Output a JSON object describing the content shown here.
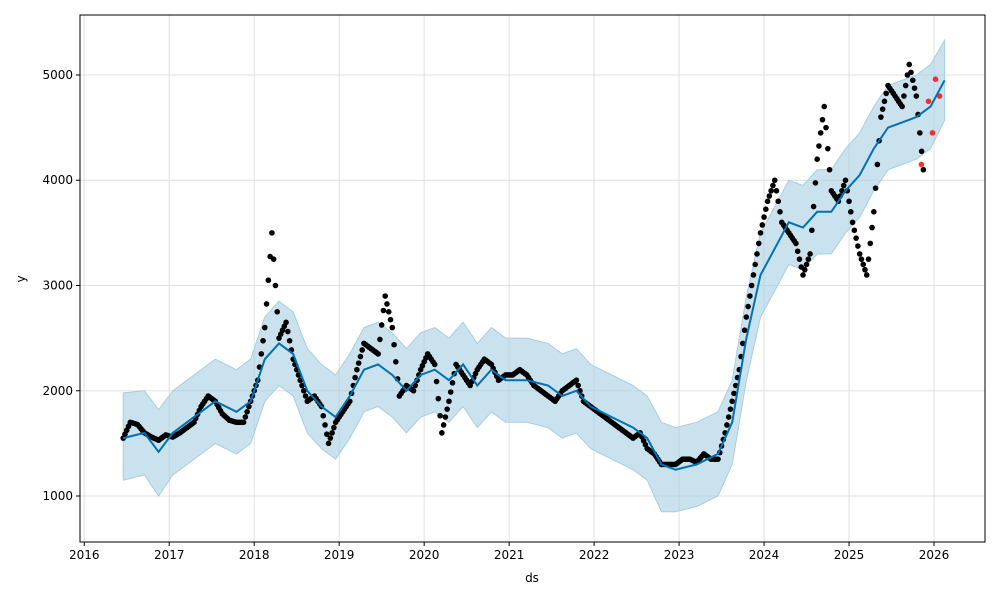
{
  "chart_data": {
    "type": "scatter",
    "title": "",
    "xlabel": "ds",
    "ylabel": "y",
    "xlim": [
      2015.95,
      2026.6
    ],
    "ylim": [
      563,
      5570
    ],
    "grid": true,
    "x_ticks": [
      "2016",
      "2017",
      "2018",
      "2019",
      "2020",
      "2021",
      "2022",
      "2023",
      "2024",
      "2025",
      "2026"
    ],
    "y_ticks": [
      1000,
      2000,
      3000,
      4000,
      5000
    ],
    "colors": {
      "observed": "#000000",
      "recent": "#ff0000",
      "forecast": "#0072b2",
      "interval": "#a6cee3"
    },
    "observed": {
      "dates": [
        "2016-06",
        "2016-07",
        "2016-08",
        "2016-09",
        "2016-10",
        "2016-11",
        "2016-12",
        "2017-01",
        "2017-02",
        "2017-03",
        "2017-04",
        "2017-05",
        "2017-06",
        "2017-07",
        "2017-08",
        "2017-09",
        "2017-10",
        "2017-11",
        "2017-12",
        "2018-01",
        "2018-02",
        "2018-03",
        "2018-04",
        "2018-05",
        "2018-06",
        "2018-07",
        "2018-08",
        "2018-09",
        "2018-10",
        "2018-11",
        "2018-12",
        "2019-01",
        "2019-02",
        "2019-03",
        "2019-04",
        "2019-05",
        "2019-06",
        "2019-07",
        "2019-08",
        "2019-09",
        "2019-10",
        "2019-11",
        "2019-12",
        "2020-01",
        "2020-02",
        "2020-03",
        "2020-04",
        "2020-05",
        "2020-06",
        "2020-07",
        "2020-08",
        "2020-09",
        "2020-10",
        "2020-11",
        "2020-12",
        "2021-01",
        "2021-02",
        "2021-03",
        "2021-04",
        "2021-05",
        "2021-06",
        "2021-07",
        "2021-08",
        "2021-09",
        "2021-10",
        "2021-11",
        "2021-12",
        "2022-01",
        "2022-02",
        "2022-03",
        "2022-04",
        "2022-05",
        "2022-06",
        "2022-07",
        "2022-08",
        "2022-09",
        "2022-10",
        "2022-11",
        "2022-12",
        "2023-01",
        "2023-02",
        "2023-03",
        "2023-04",
        "2023-05",
        "2023-06",
        "2023-07",
        "2023-08",
        "2023-09",
        "2023-10",
        "2023-11",
        "2023-12",
        "2024-01",
        "2024-02",
        "2024-03",
        "2024-04",
        "2024-05",
        "2024-06",
        "2024-07",
        "2024-08",
        "2024-09",
        "2024-10",
        "2024-11",
        "2024-12",
        "2025-01",
        "2025-02",
        "2025-03",
        "2025-04",
        "2025-05",
        "2025-06",
        "2025-07",
        "2025-08",
        "2025-09",
        "2025-10",
        "2025-11"
      ],
      "values": [
        1550,
        1700,
        1680,
        1600,
        1560,
        1530,
        1580,
        1560,
        1600,
        1650,
        1700,
        1850,
        1950,
        1900,
        1780,
        1720,
        1700,
        1700,
        1900,
        2100,
        2600,
        3500,
        2500,
        2650,
        2300,
        2100,
        1900,
        1950,
        1850,
        1500,
        1700,
        1800,
        1900,
        2200,
        2450,
        2400,
        2350,
        2900,
        2600,
        1950,
        2050,
        2000,
        2200,
        2350,
        2250,
        1600,
        1900,
        2250,
        2150,
        2050,
        2200,
        2300,
        2250,
        2100,
        2150,
        2150,
        2200,
        2150,
        2050,
        2000,
        1950,
        1900,
        2000,
        2050,
        2100,
        1900,
        1850,
        1800,
        1750,
        1700,
        1650,
        1600,
        1550,
        1600,
        1450,
        1400,
        1300,
        1300,
        1300,
        1350,
        1350,
        1320,
        1400,
        1350,
        1350,
        1600,
        1900,
        2200,
        2700,
        3100,
        3500,
        3800,
        4000,
        3600,
        3500,
        3400,
        3100,
        3300,
        4200,
        4700,
        3900,
        3800,
        4000,
        3600,
        3300,
        3100,
        3700,
        4600,
        4900,
        4800,
        4700,
        5100,
        4800,
        4100
      ]
    },
    "recent": {
      "dates": [
        "2025-11",
        "2025-12",
        "2025-12",
        "2026-01",
        "2026-01"
      ],
      "values": [
        4150,
        4450,
        4750,
        4800,
        4960
      ]
    },
    "forecast": {
      "dates": [
        "2016-06",
        "2016-09",
        "2016-11",
        "2017-01",
        "2017-04",
        "2017-07",
        "2017-10",
        "2017-12",
        "2018-02",
        "2018-04",
        "2018-06",
        "2018-08",
        "2018-10",
        "2018-12",
        "2019-02",
        "2019-04",
        "2019-06",
        "2019-08",
        "2019-10",
        "2019-12",
        "2020-02",
        "2020-04",
        "2020-06",
        "2020-08",
        "2020-10",
        "2020-12",
        "2021-03",
        "2021-06",
        "2021-08",
        "2021-10",
        "2021-12",
        "2022-03",
        "2022-06",
        "2022-08",
        "2022-10",
        "2022-12",
        "2023-03",
        "2023-06",
        "2023-08",
        "2023-10",
        "2023-12",
        "2024-02",
        "2024-04",
        "2024-06",
        "2024-08",
        "2024-10",
        "2024-12",
        "2025-02",
        "2025-04",
        "2025-06",
        "2025-08",
        "2025-10",
        "2025-12",
        "2026-02"
      ],
      "yhat": [
        1550,
        1600,
        1420,
        1600,
        1750,
        1900,
        1800,
        1900,
        2300,
        2450,
        2350,
        2000,
        1850,
        1750,
        1950,
        2200,
        2250,
        2150,
        2000,
        2150,
        2200,
        2100,
        2250,
        2050,
        2200,
        2100,
        2100,
        2050,
        1950,
        2000,
        1850,
        1750,
        1650,
        1550,
        1300,
        1250,
        1300,
        1400,
        1700,
        2500,
        3100,
        3350,
        3600,
        3550,
        3700,
        3700,
        3900,
        4050,
        4300,
        4500,
        4550,
        4600,
        4700,
        4950
      ],
      "yhat_lower": [
        1150,
        1200,
        1000,
        1200,
        1350,
        1500,
        1400,
        1500,
        1900,
        2050,
        1950,
        1600,
        1450,
        1350,
        1550,
        1800,
        1850,
        1750,
        1600,
        1750,
        1800,
        1700,
        1850,
        1650,
        1800,
        1700,
        1700,
        1650,
        1550,
        1600,
        1450,
        1350,
        1250,
        1150,
        850,
        850,
        900,
        1000,
        1300,
        2100,
        2700,
        2950,
        3200,
        3150,
        3300,
        3300,
        3500,
        3650,
        3900,
        4100,
        4150,
        4200,
        4300,
        4570
      ],
      "yhat_upper": [
        1980,
        2000,
        1820,
        2000,
        2150,
        2300,
        2200,
        2300,
        2700,
        2850,
        2750,
        2400,
        2250,
        2150,
        2350,
        2600,
        2650,
        2550,
        2400,
        2550,
        2600,
        2500,
        2650,
        2450,
        2600,
        2500,
        2500,
        2450,
        2350,
        2400,
        2250,
        2150,
        2050,
        1950,
        1700,
        1650,
        1700,
        1800,
        2100,
        2900,
        3500,
        3750,
        4000,
        3950,
        4100,
        4100,
        4300,
        4450,
        4700,
        4900,
        4950,
        5000,
        5100,
        5330
      ]
    }
  }
}
